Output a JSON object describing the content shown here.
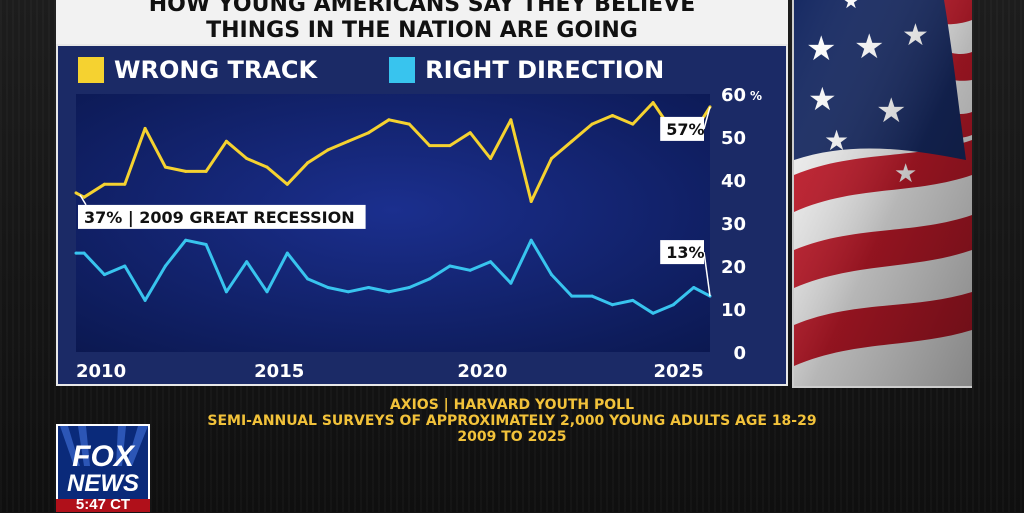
{
  "headline": {
    "line1": "HOW YOUNG AMERICANS SAY THEY BELIEVE",
    "line2": "THINGS IN THE NATION ARE GOING"
  },
  "legend": {
    "wrong_track": "WRONG TRACK",
    "right_direction": "RIGHT DIRECTION"
  },
  "colors": {
    "wrong_track": "#f5d230",
    "right_direction": "#38c4ee",
    "background": "#1b2a66"
  },
  "chart_data": {
    "type": "line",
    "title": "HOW YOUNG AMERICANS SAY THEY BELIEVE THINGS IN THE NATION ARE GOING",
    "xlabel": "",
    "ylabel": "%",
    "xlim": [
      2010,
      2025.6
    ],
    "ylim": [
      0,
      60
    ],
    "x_ticks": [
      2010,
      2015,
      2020,
      2025
    ],
    "y_ticks": [
      0,
      10,
      20,
      30,
      40,
      50,
      60
    ],
    "y_tick_labels": [
      "0",
      "10",
      "20",
      "30",
      "40",
      "50",
      "60"
    ],
    "y_unit": "%",
    "grid": false,
    "legend": "top-left",
    "x": [
      2010,
      2010.2,
      2010.7,
      2011.2,
      2011.7,
      2012.2,
      2012.7,
      2013.2,
      2013.7,
      2014.2,
      2014.7,
      2015.2,
      2015.7,
      2016.2,
      2016.7,
      2017.2,
      2017.7,
      2018.2,
      2018.7,
      2019.2,
      2019.7,
      2020.2,
      2020.7,
      2021.2,
      2021.7,
      2022.2,
      2022.7,
      2023.2,
      2023.7,
      2024.2,
      2024.7,
      2025.2,
      2025.6
    ],
    "series": [
      {
        "name": "WRONG TRACK",
        "values": [
          37,
          36,
          39,
          39,
          52,
          43,
          42,
          42,
          49,
          45,
          43,
          39,
          44,
          47,
          49,
          51,
          54,
          53,
          48,
          48,
          51,
          45,
          54,
          35,
          45,
          49,
          53,
          55,
          53,
          58,
          51,
          51,
          57
        ]
      },
      {
        "name": "RIGHT DIRECTION",
        "values": [
          23,
          23,
          18,
          20,
          12,
          20,
          26,
          25,
          14,
          21,
          14,
          23,
          17,
          15,
          14,
          15,
          14,
          15,
          17,
          20,
          19,
          21,
          16,
          26,
          18,
          13,
          13,
          11,
          12,
          9,
          11,
          15,
          13
        ]
      }
    ],
    "annotations": [
      {
        "text": "37% | 2009 GREAT RECESSION",
        "x": 2010,
        "y": 37,
        "series": "WRONG TRACK"
      },
      {
        "text": "57%",
        "x": 2025.6,
        "y": 57,
        "series": "WRONG TRACK"
      },
      {
        "text": "13%",
        "x": 2025.6,
        "y": 13,
        "series": "RIGHT DIRECTION"
      }
    ]
  },
  "source": {
    "line1": "AXIOS | HARVARD YOUTH POLL",
    "line2": "SEMI-ANNUAL SURVEYS OF APPROXIMATELY 2,000 YOUNG ADULTS AGE 18-29",
    "line3": "2009 TO 2025"
  },
  "logo": {
    "line1": "FOX",
    "line2": "NEWS",
    "time": "5:47 CT"
  }
}
